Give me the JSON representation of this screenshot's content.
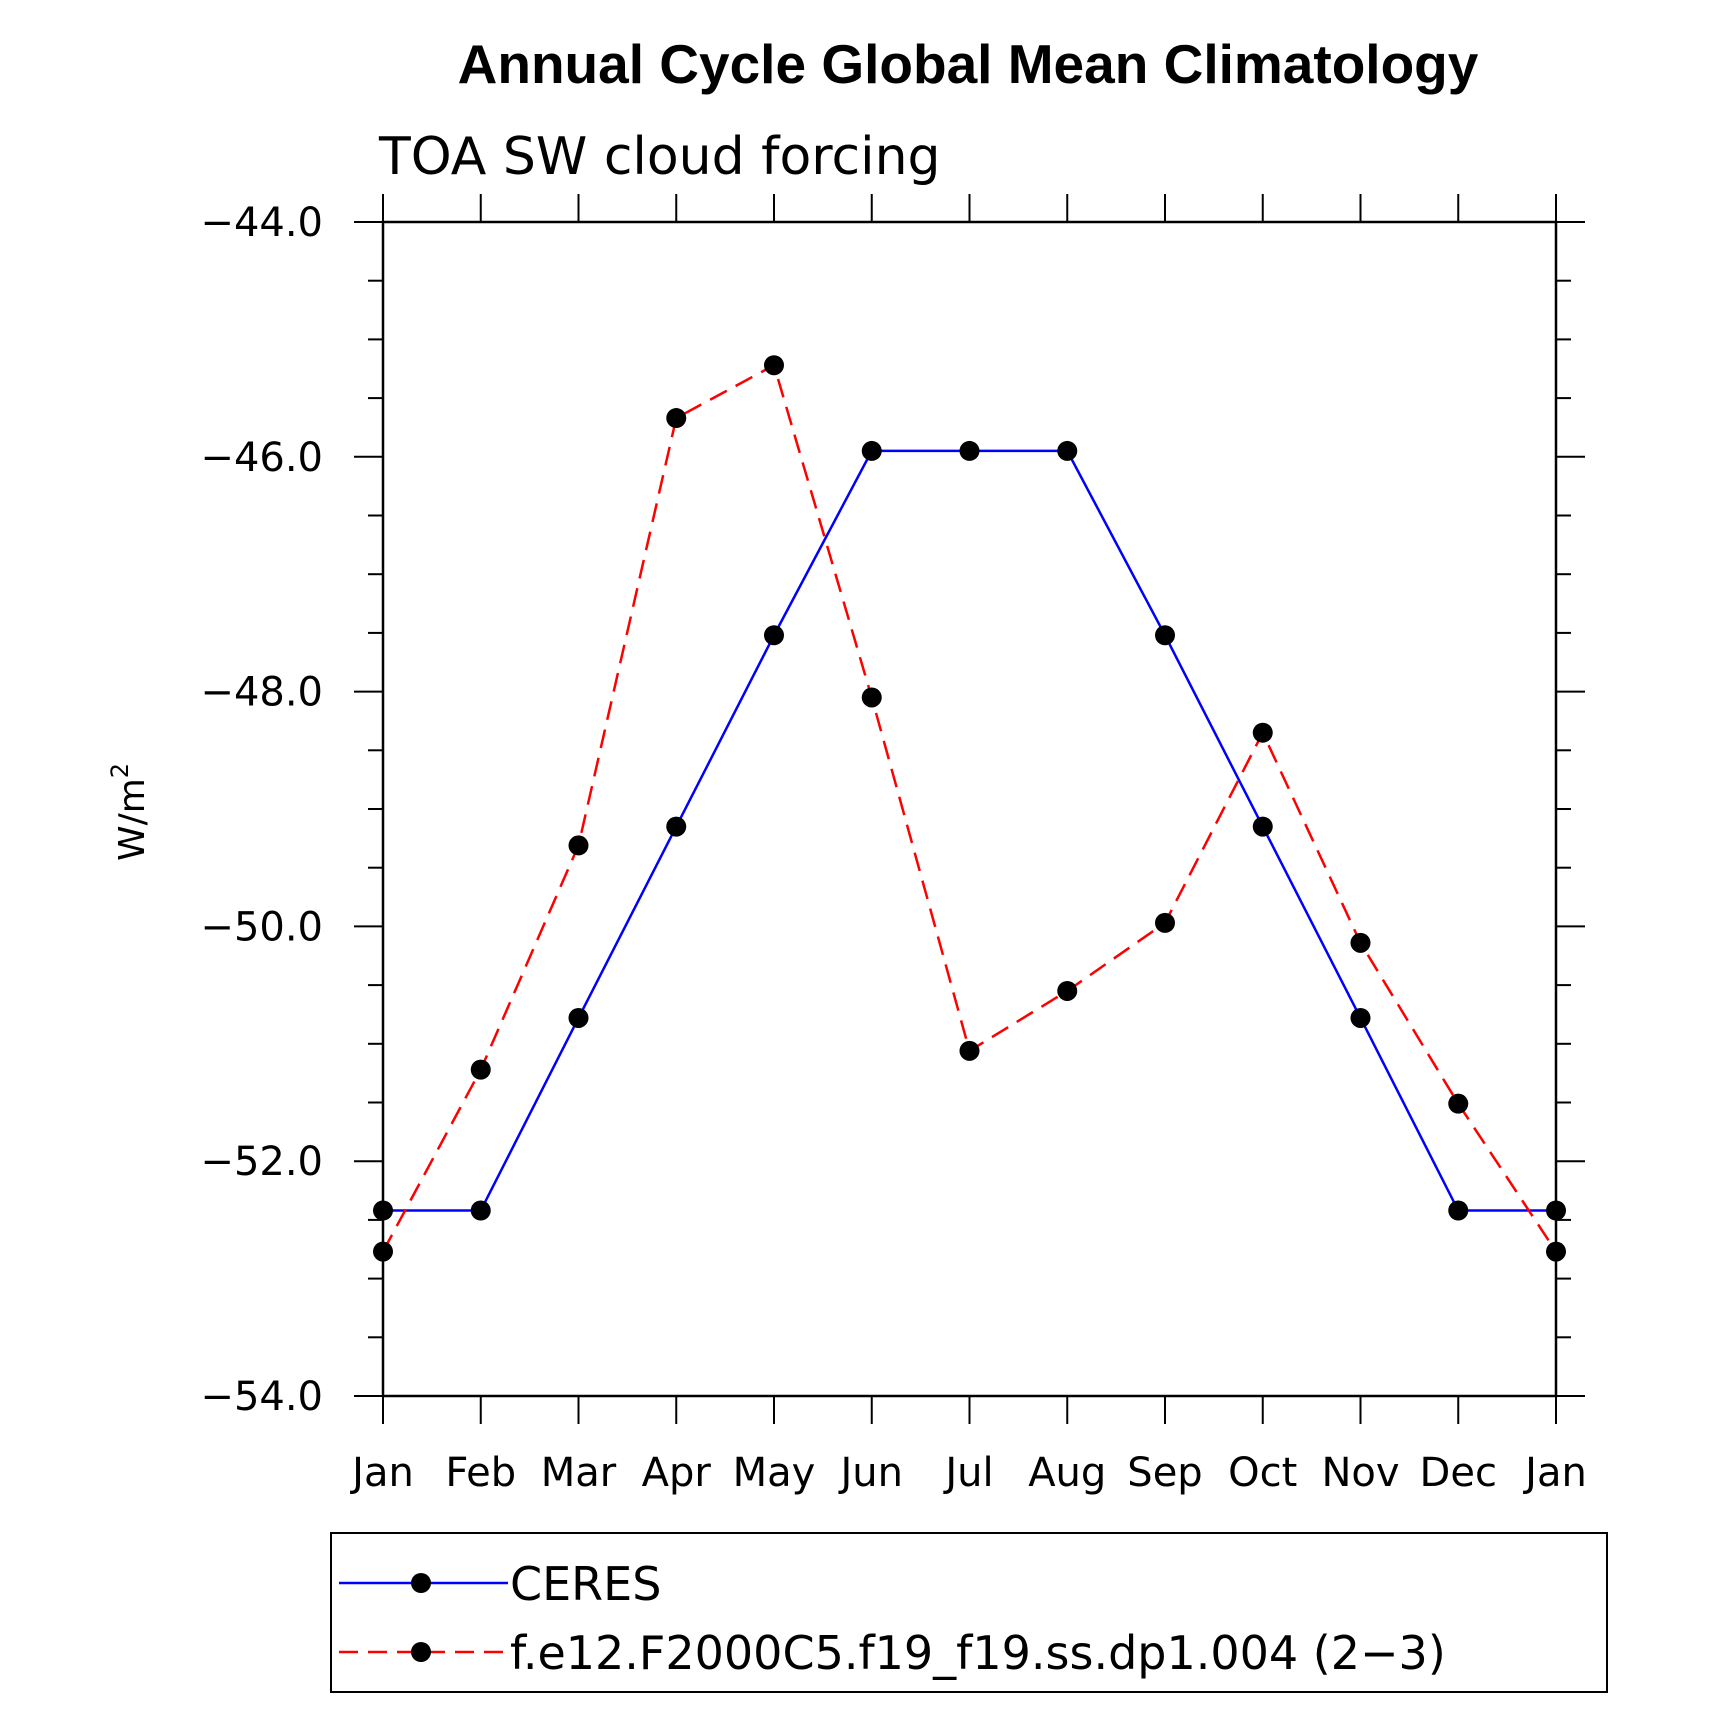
{
  "chart_data": {
    "type": "line",
    "title": "Annual Cycle Global Mean Climatology",
    "subtitle": "TOA SW cloud forcing",
    "ylabel": "W/m",
    "ylabel_superscript": "2",
    "xlabel": "",
    "categories": [
      "Jan",
      "Feb",
      "Mar",
      "Apr",
      "May",
      "Jun",
      "Jul",
      "Aug",
      "Sep",
      "Oct",
      "Nov",
      "Dec",
      "Jan"
    ],
    "ylim": [
      -54.0,
      -44.0
    ],
    "yticks": [
      -54.0,
      -52.0,
      -50.0,
      -48.0,
      -46.0,
      -44.0
    ],
    "ytick_labels": [
      "−54.0",
      "−52.0",
      "−50.0",
      "−48.0",
      "−46.0",
      "−44.0"
    ],
    "grid": false,
    "legend_position": "bottom",
    "series": [
      {
        "name": "CERES",
        "color": "#0000ff",
        "line_style": "solid",
        "marker": "filled-circle",
        "values": [
          -52.42,
          -52.42,
          -50.78,
          -49.15,
          -47.52,
          -45.95,
          -45.95,
          -45.95,
          -47.52,
          -49.15,
          -50.78,
          -52.42,
          -52.42
        ]
      },
      {
        "name": "f.e12.F2000C5.f19_f19.ss.dp1.004 (2−3)",
        "color": "#ff0000",
        "line_style": "dashed",
        "marker": "filled-circle",
        "values": [
          -52.77,
          -51.22,
          -49.31,
          -45.67,
          -45.22,
          -48.05,
          -51.06,
          -50.55,
          -49.97,
          -48.35,
          -50.14,
          -51.51,
          -52.77
        ]
      }
    ]
  }
}
